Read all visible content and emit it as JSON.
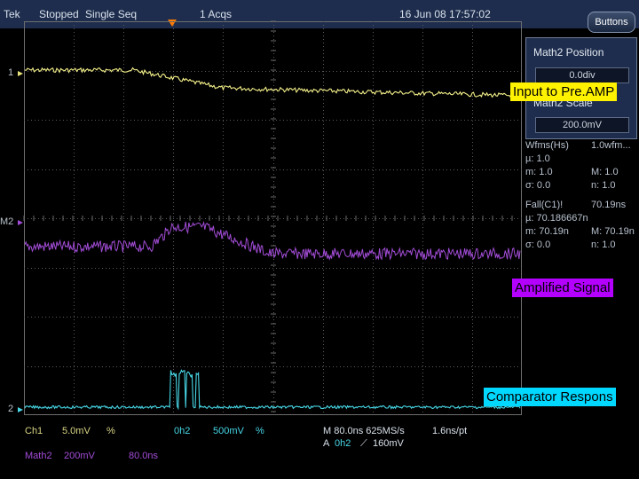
{
  "topbar": {
    "brand": "Tek",
    "status": "Stopped",
    "mode": "Single Seq",
    "acqs": "1 Acqs",
    "datetime": "16 Jun 08 17:57:02",
    "buttons_label": "Buttons"
  },
  "channels": {
    "ch1_marker": "1",
    "m2_marker": "M2",
    "ch2_marker": "2"
  },
  "math_panel": {
    "position_title": "Math2 Position",
    "position_value": "0.0div",
    "scale_title": "Math2 Scale",
    "scale_value": "200.0mV"
  },
  "measurements": {
    "wfms_label": "Wfms(Hs)",
    "wfms_value": "1.0wfm...",
    "mu1": "µ:  1.0",
    "m1": "m:  1.0",
    "M1": "M:  1.0",
    "sigma1": "σ:  0.0",
    "n1": "n:  1.0",
    "fall_label": "Fall(C1)!",
    "fall_value": "70.19ns",
    "mu2": "µ:  70.186667n",
    "m2": "m:  70.19n",
    "M2": "M:  70.19n",
    "sigma2": "σ:  0.0",
    "n2": "n:  1.0"
  },
  "annotations": {
    "input": "Input to Pre.AMP",
    "amplified": "Amplified Signal",
    "comparator": "Comparator Respons"
  },
  "bottom": {
    "ch1": "Ch1",
    "ch1_scale": "5.0mV",
    "ch1_coupling": "%",
    "ch2": "0h2",
    "ch2_scale": "500mV",
    "ch2_coupling": "%",
    "timebase": "M 80.0ns 625MS/s",
    "pt": "1.6ns/pt",
    "trigger_a": "A",
    "trigger_src": "0h2",
    "trigger_slope": "⟋",
    "trigger_level": "160mV",
    "math2": "Math2",
    "math2_scale": "200mV",
    "math2_time": "80.0ns"
  },
  "colors": {
    "ch1": "#f4f08a",
    "math2": "#a24cd6",
    "ch2": "#47d6e6",
    "annotation_yellow": "#fff200",
    "annotation_purple": "#b400ff",
    "annotation_cyan": "#00d8ff"
  }
}
